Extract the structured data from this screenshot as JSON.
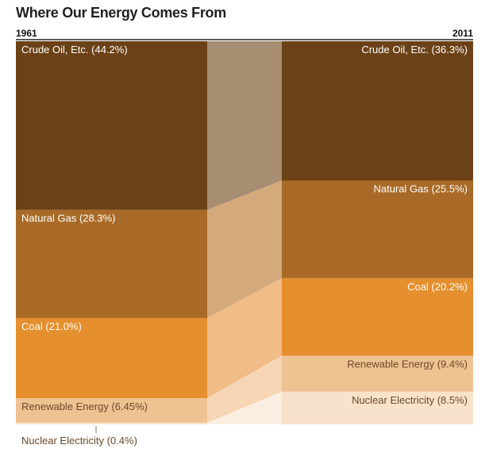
{
  "chart_data": {
    "type": "stacked-bar",
    "title": "Where Our Energy Comes From",
    "years": [
      "1961",
      "2011"
    ],
    "categories": [
      "Crude Oil, Etc.",
      "Natural Gas",
      "Coal",
      "Renewable Energy",
      "Nuclear Electricity"
    ],
    "series": [
      {
        "name": "1961",
        "values": [
          44.2,
          28.3,
          21.0,
          6.45,
          0.4
        ],
        "labels": [
          "Crude Oil, Etc. (44.2%)",
          "Natural Gas (28.3%)",
          "Coal (21.0%)",
          "Renewable Energy (6.45%)",
          "Nuclear Electricity (0.4%)"
        ]
      },
      {
        "name": "2011",
        "values": [
          36.3,
          25.5,
          20.2,
          9.4,
          8.5
        ],
        "labels": [
          "Crude Oil, Etc. (36.3%)",
          "Natural Gas (25.5%)",
          "Coal (20.2%)",
          "Renewable Energy (9.4%)",
          "Nuclear Electricity (8.5%)"
        ]
      }
    ],
    "colors": [
      "#6b4216",
      "#a86a26",
      "#e68f2e",
      "#efc292",
      "#f8e2cb"
    ],
    "flow_colors": [
      "#a78d72",
      "#d4a97c",
      "#f0bc88",
      "#f6d6b4",
      "#fbeee0"
    ],
    "label_colors": [
      "#ffffff",
      "#ffffff",
      "#ffffff",
      "#6b4a2a",
      "#6b4a2a"
    ]
  }
}
